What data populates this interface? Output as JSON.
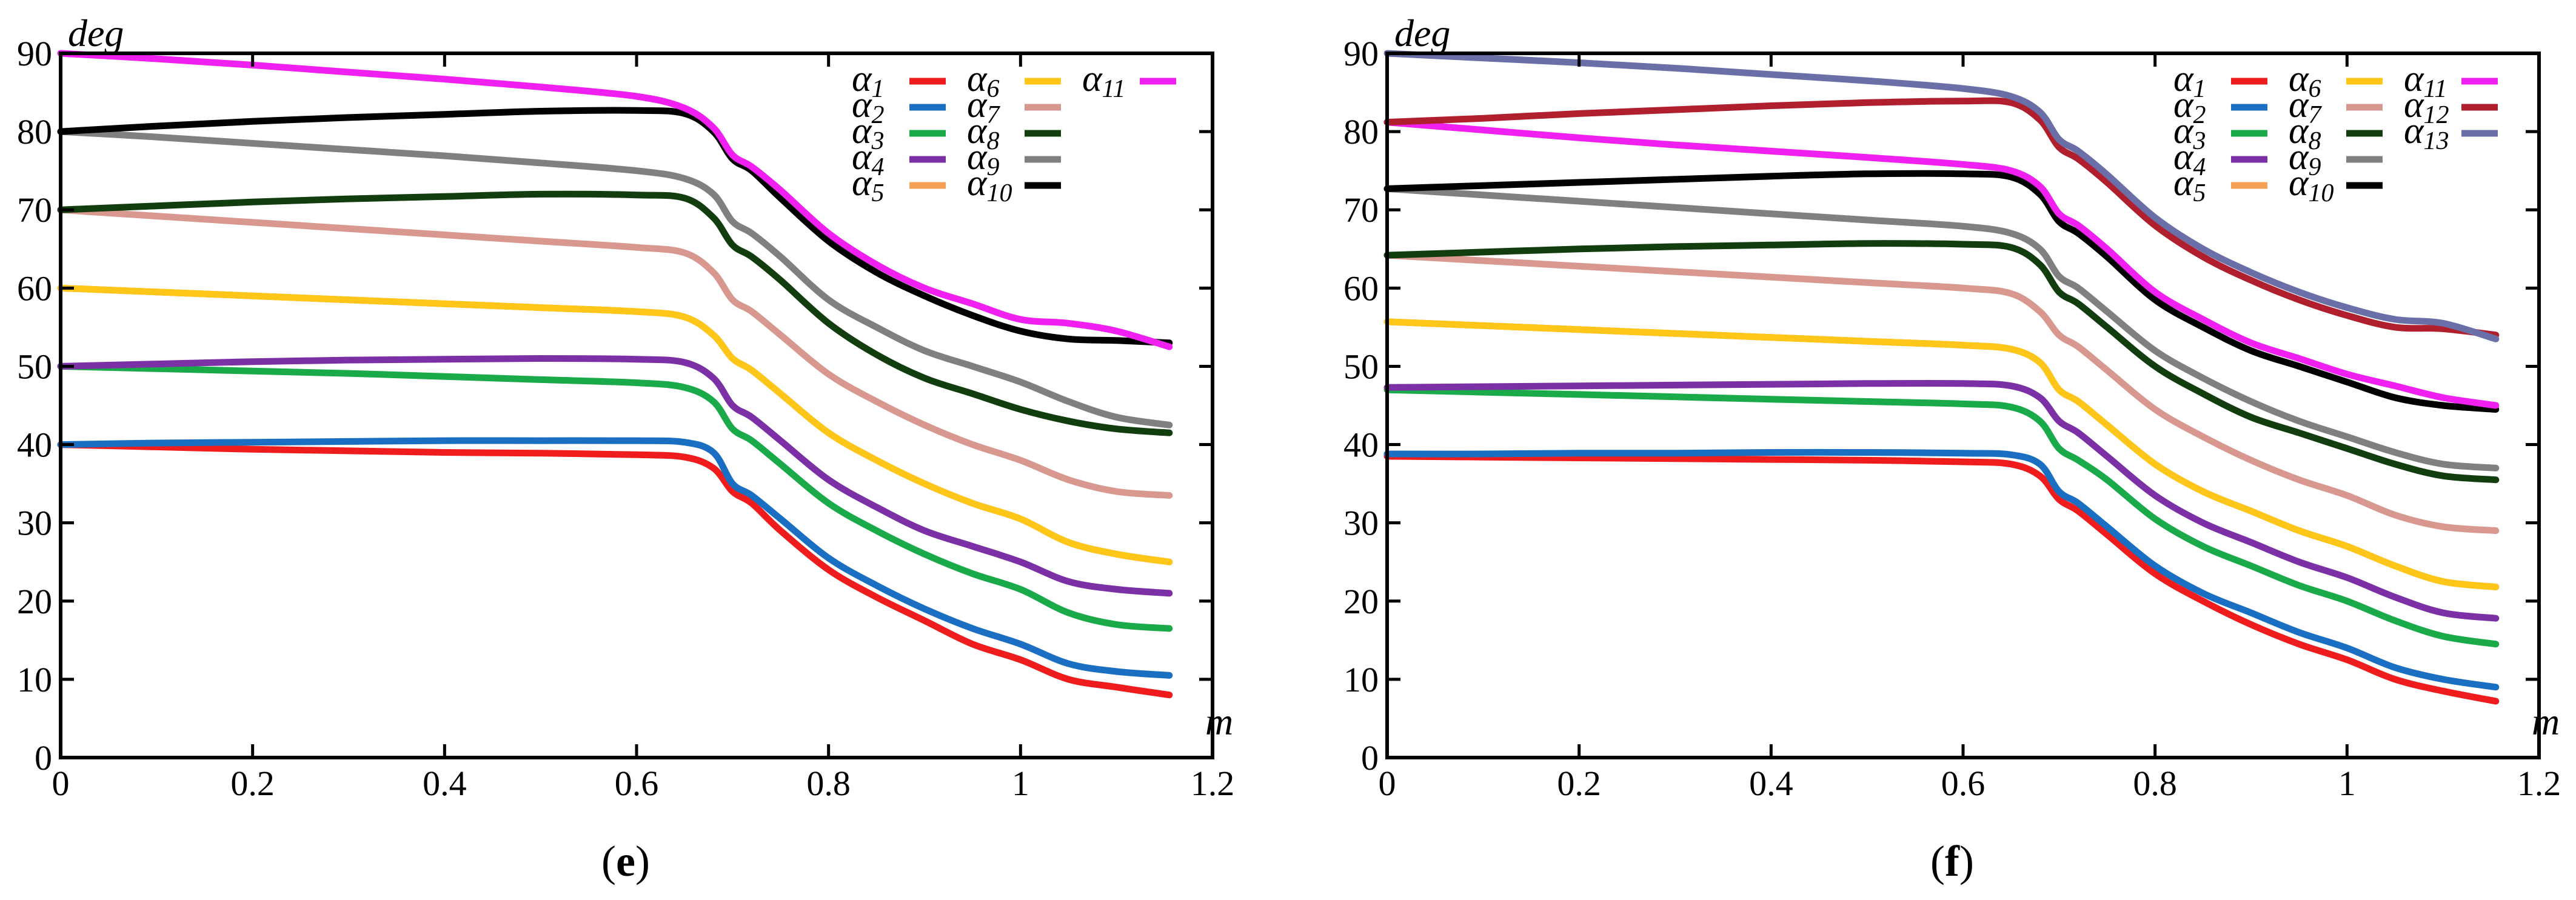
{
  "figure": {
    "panels": [
      {
        "caption_open": "(",
        "caption_letter": "e",
        "caption_close": ")"
      },
      {
        "caption_open": "(",
        "caption_letter": "f",
        "caption_close": ")"
      }
    ]
  },
  "chart_data": [
    {
      "type": "line",
      "panel": "e",
      "ylabel": "deg",
      "xlabel": "m",
      "xlim": [
        0,
        1.2
      ],
      "ylim": [
        0,
        90
      ],
      "xticks": [
        0,
        0.2,
        0.4,
        0.6,
        0.8,
        1,
        1.2
      ],
      "xtick_labels": [
        "0",
        "0.2",
        "0.4",
        "0.6",
        "0.8",
        "1",
        "1.2"
      ],
      "yticks": [
        0,
        10,
        20,
        30,
        40,
        50,
        60,
        70,
        80,
        90
      ],
      "ytick_labels": [
        "0",
        "10",
        "20",
        "30",
        "40",
        "50",
        "60",
        "70",
        "80",
        "90"
      ],
      "x": [
        0,
        0.1,
        0.2,
        0.3,
        0.4,
        0.5,
        0.6,
        0.65,
        0.68,
        0.7,
        0.72,
        0.75,
        0.8,
        0.85,
        0.9,
        0.95,
        1,
        1.05,
        1.1,
        1.155
      ],
      "legend_columns": [
        [
          "α1",
          "α2",
          "α3",
          "α4",
          "α5"
        ],
        [
          "α6",
          "α7",
          "α8",
          "α9",
          "α10"
        ],
        [
          "α11"
        ]
      ],
      "series": [
        {
          "name": "α1",
          "color": "#ee1c1c",
          "values": [
            40,
            39.7,
            39.4,
            39.2,
            39.0,
            38.9,
            38.7,
            38.4,
            37.0,
            34.0,
            32.5,
            29.0,
            24.0,
            20.5,
            17.5,
            14.5,
            12.5,
            10.0,
            9.0,
            8.0
          ]
        },
        {
          "name": "α2",
          "color": "#1a6fc2",
          "values": [
            40,
            40.2,
            40.3,
            40.4,
            40.5,
            40.5,
            40.5,
            40.3,
            39.0,
            35.0,
            33.5,
            30.5,
            25.5,
            22.0,
            19.0,
            16.5,
            14.5,
            12.0,
            11.0,
            10.5
          ]
        },
        {
          "name": "α3",
          "color": "#1aaa4a",
          "values": [
            50,
            49.7,
            49.4,
            49.1,
            48.7,
            48.3,
            47.9,
            47.3,
            45.5,
            42.0,
            40.5,
            37.5,
            32.5,
            29.0,
            26.0,
            23.5,
            21.5,
            18.5,
            17.0,
            16.5
          ]
        },
        {
          "name": "α4",
          "color": "#7b30a6",
          "values": [
            50,
            50.3,
            50.6,
            50.8,
            50.9,
            51.0,
            50.9,
            50.5,
            48.5,
            45.0,
            43.5,
            40.5,
            35.5,
            32.0,
            29.0,
            27.0,
            25.0,
            22.5,
            21.5,
            21.0
          ]
        },
        {
          "name": "α5",
          "color": "#f5a055",
          "values": [
            60,
            59.5,
            59.0,
            58.5,
            58.0,
            57.5,
            57.0,
            56.3,
            54.0,
            51.0,
            49.5,
            46.5,
            41.5,
            38.0,
            35.0,
            32.5,
            30.5,
            27.5,
            26.0,
            25.0
          ]
        },
        {
          "name": "α6",
          "color": "#ffc61a",
          "values": [
            60,
            59.5,
            59.0,
            58.5,
            58.0,
            57.5,
            57.0,
            56.3,
            54.0,
            51.0,
            49.5,
            46.5,
            41.5,
            38.0,
            35.0,
            32.5,
            30.5,
            27.5,
            26.0,
            25.0
          ]
        },
        {
          "name": "α7",
          "color": "#d8988f",
          "values": [
            70,
            69.2,
            68.4,
            67.6,
            66.8,
            66.0,
            65.2,
            64.5,
            62.0,
            58.5,
            57.0,
            54.0,
            49.0,
            45.5,
            42.5,
            40.0,
            38.0,
            35.5,
            34.0,
            33.5
          ]
        },
        {
          "name": "α8",
          "color": "#123d0f",
          "values": [
            70,
            70.5,
            71.0,
            71.4,
            71.7,
            72.0,
            71.9,
            71.5,
            69.0,
            65.5,
            64.0,
            61.0,
            55.5,
            51.5,
            48.5,
            46.5,
            44.5,
            43.0,
            42.0,
            41.5
          ]
        },
        {
          "name": "α9",
          "color": "#808080",
          "values": [
            80,
            79.3,
            78.5,
            77.7,
            76.9,
            76.0,
            75.0,
            74.0,
            72.0,
            68.5,
            67.0,
            64.0,
            58.5,
            55.0,
            52.0,
            50.0,
            48.0,
            45.5,
            43.5,
            42.5
          ]
        },
        {
          "name": "α10",
          "color": "#000000",
          "values": [
            80,
            80.7,
            81.3,
            81.8,
            82.2,
            82.6,
            82.7,
            82.3,
            80.0,
            76.5,
            75.0,
            71.5,
            66.0,
            62.0,
            59.0,
            56.5,
            54.5,
            53.5,
            53.3,
            53.0
          ]
        },
        {
          "name": "α11",
          "color": "#f020f0",
          "values": [
            90,
            89.3,
            88.5,
            87.6,
            86.7,
            85.7,
            84.5,
            83.0,
            80.5,
            77.0,
            75.5,
            72.5,
            67.0,
            63.0,
            60.0,
            58.0,
            56.0,
            55.5,
            54.5,
            52.5
          ]
        }
      ]
    },
    {
      "type": "line",
      "panel": "f",
      "ylabel": "deg",
      "xlabel": "m",
      "xlim": [
        0,
        1.2
      ],
      "ylim": [
        0,
        90
      ],
      "xticks": [
        0,
        0.2,
        0.4,
        0.6,
        0.8,
        1,
        1.2
      ],
      "xtick_labels": [
        "0",
        "0.2",
        "0.4",
        "0.6",
        "0.8",
        "1",
        "1.2"
      ],
      "yticks": [
        0,
        10,
        20,
        30,
        40,
        50,
        60,
        70,
        80,
        90
      ],
      "ytick_labels": [
        "0",
        "10",
        "20",
        "30",
        "40",
        "50",
        "60",
        "70",
        "80",
        "90"
      ],
      "x": [
        0,
        0.1,
        0.2,
        0.3,
        0.4,
        0.5,
        0.6,
        0.65,
        0.68,
        0.7,
        0.72,
        0.75,
        0.8,
        0.85,
        0.9,
        0.95,
        1,
        1.05,
        1.1,
        1.155
      ],
      "legend_columns": [
        [
          "α1",
          "α2",
          "α3",
          "α4",
          "α5"
        ],
        [
          "α6",
          "α7",
          "α8",
          "α9",
          "α10"
        ],
        [
          "α11",
          "α12",
          "α13"
        ]
      ],
      "series": [
        {
          "name": "α1",
          "color": "#ee1c1c",
          "values": [
            38.5,
            38.4,
            38.3,
            38.2,
            38.1,
            38.0,
            37.8,
            37.5,
            36.0,
            33.0,
            31.5,
            28.5,
            23.5,
            20.0,
            17.0,
            14.5,
            12.5,
            10.0,
            8.5,
            7.2
          ]
        },
        {
          "name": "α2",
          "color": "#1a6fc2",
          "values": [
            38.8,
            38.8,
            38.9,
            38.9,
            39.0,
            39.0,
            38.9,
            38.7,
            37.5,
            34.0,
            32.5,
            29.5,
            24.5,
            21.0,
            18.5,
            16.0,
            14.0,
            11.5,
            10.0,
            9.0
          ]
        },
        {
          "name": "α3",
          "color": "#1aaa4a",
          "values": [
            47,
            46.7,
            46.4,
            46.1,
            45.8,
            45.5,
            45.2,
            44.8,
            43.0,
            39.5,
            38.0,
            35.5,
            30.5,
            27.0,
            24.5,
            22.0,
            20.0,
            17.5,
            15.5,
            14.5
          ]
        },
        {
          "name": "α4",
          "color": "#7b30a6",
          "values": [
            47.3,
            47.4,
            47.5,
            47.6,
            47.7,
            47.8,
            47.8,
            47.5,
            46.0,
            43.0,
            41.5,
            38.5,
            33.5,
            30.0,
            27.5,
            25.0,
            23.0,
            20.5,
            18.5,
            17.8
          ]
        },
        {
          "name": "α5",
          "color": "#f5a055",
          "values": [
            55.7,
            55.2,
            54.7,
            54.2,
            53.7,
            53.2,
            52.7,
            52.2,
            50.5,
            47.0,
            45.5,
            42.5,
            37.5,
            34.0,
            31.5,
            29.0,
            27.0,
            24.5,
            22.5,
            21.8
          ]
        },
        {
          "name": "α6",
          "color": "#ffc61a",
          "values": [
            55.7,
            55.2,
            54.7,
            54.2,
            53.7,
            53.2,
            52.7,
            52.2,
            50.5,
            47.0,
            45.5,
            42.5,
            37.5,
            34.0,
            31.5,
            29.0,
            27.0,
            24.5,
            22.5,
            21.8
          ]
        },
        {
          "name": "α7",
          "color": "#d8988f",
          "values": [
            64.2,
            63.5,
            62.8,
            62.1,
            61.4,
            60.7,
            60.0,
            59.3,
            57.0,
            54.0,
            52.5,
            49.5,
            44.5,
            41.0,
            38.0,
            35.5,
            33.5,
            31.0,
            29.5,
            29.0
          ]
        },
        {
          "name": "α8",
          "color": "#123d0f",
          "values": [
            64.2,
            64.6,
            65.0,
            65.3,
            65.5,
            65.7,
            65.6,
            65.2,
            63.0,
            59.5,
            58.0,
            55.0,
            50.0,
            46.5,
            43.5,
            41.5,
            39.5,
            37.5,
            36.0,
            35.5
          ]
        },
        {
          "name": "α9",
          "color": "#808080",
          "values": [
            72.7,
            71.9,
            71.1,
            70.3,
            69.5,
            68.7,
            67.9,
            67.0,
            65.0,
            61.5,
            60.0,
            57.0,
            52.0,
            48.5,
            45.5,
            43.0,
            41.0,
            39.0,
            37.5,
            37.0
          ]
        },
        {
          "name": "α10",
          "color": "#000000",
          "values": [
            72.7,
            73.1,
            73.5,
            73.9,
            74.3,
            74.6,
            74.6,
            74.2,
            72.0,
            68.5,
            67.0,
            64.0,
            58.5,
            55.0,
            52.0,
            50.0,
            48.0,
            46.0,
            45.0,
            44.5
          ]
        },
        {
          "name": "α11",
          "color": "#f020f0",
          "values": [
            81.2,
            80.2,
            79.2,
            78.3,
            77.5,
            76.7,
            75.8,
            75.0,
            73.0,
            69.5,
            68.0,
            65.0,
            59.5,
            56.0,
            53.0,
            51.0,
            49.0,
            47.5,
            46.0,
            45.0
          ]
        },
        {
          "name": "α12",
          "color": "#b01f2e",
          "values": [
            81.2,
            81.7,
            82.3,
            82.8,
            83.3,
            83.7,
            83.9,
            83.7,
            81.5,
            78.0,
            76.5,
            73.5,
            68.0,
            64.0,
            61.0,
            58.5,
            56.5,
            55.0,
            54.8,
            54.0
          ]
        },
        {
          "name": "α13",
          "color": "#6a6fa8",
          "values": [
            90,
            89.4,
            88.8,
            88.1,
            87.3,
            86.5,
            85.5,
            84.5,
            82.5,
            79.0,
            77.5,
            74.5,
            69.0,
            65.0,
            62.0,
            59.5,
            57.5,
            56.0,
            55.5,
            53.5
          ]
        }
      ]
    }
  ]
}
